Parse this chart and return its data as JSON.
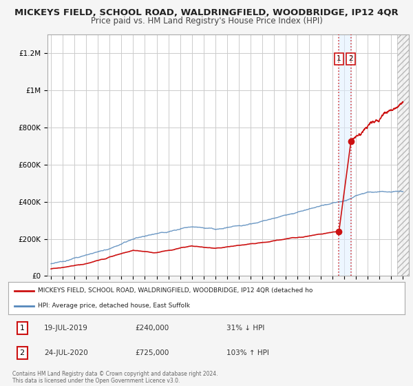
{
  "title": "MICKEYS FIELD, SCHOOL ROAD, WALDRINGFIELD, WOODBRIDGE, IP12 4QR",
  "subtitle": "Price paid vs. HM Land Registry's House Price Index (HPI)",
  "ylim": [
    0,
    1300000
  ],
  "xlim_start": 1994.7,
  "xlim_end": 2025.5,
  "yticks": [
    0,
    200000,
    400000,
    600000,
    800000,
    1000000,
    1200000
  ],
  "ytick_labels": [
    "£0",
    "£200K",
    "£400K",
    "£600K",
    "£800K",
    "£1M",
    "£1.2M"
  ],
  "bg_color": "#f5f5f5",
  "plot_bg_color": "#ffffff",
  "grid_color": "#cccccc",
  "red_line_color": "#cc1111",
  "blue_line_color": "#5588bb",
  "marker1_date": 2019.54,
  "marker1_price": 240000,
  "marker2_date": 2020.56,
  "marker2_price": 725000,
  "vline1_x": 2019.54,
  "vline2_x": 2020.56,
  "hatch_start": 2024.5,
  "legend_entry1": "MICKEYS FIELD, SCHOOL ROAD, WALDRINGFIELD, WOODBRIDGE, IP12 4QR (detached ho",
  "legend_entry2": "HPI: Average price, detached house, East Suffolk",
  "annotation1_date": "19-JUL-2019",
  "annotation1_price": "£240,000",
  "annotation1_hpi": "31% ↓ HPI",
  "annotation2_date": "24-JUL-2020",
  "annotation2_price": "£725,000",
  "annotation2_hpi": "103% ↑ HPI",
  "footer": "Contains HM Land Registry data © Crown copyright and database right 2024.\nThis data is licensed under the Open Government Licence v3.0."
}
